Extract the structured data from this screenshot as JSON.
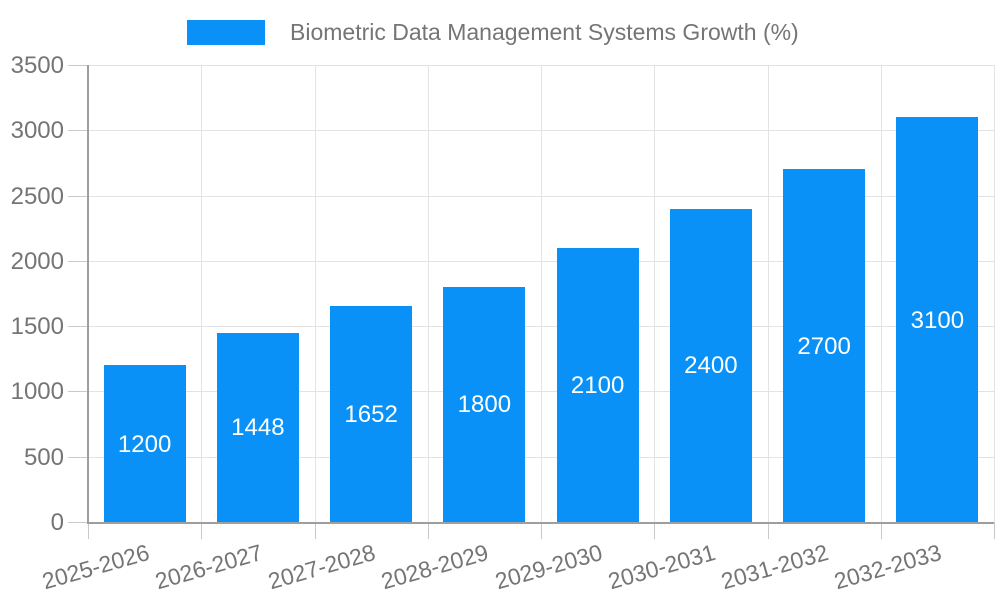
{
  "legend": {
    "label": "Biometric Data Management Systems Growth (%)"
  },
  "chart_data": {
    "type": "bar",
    "title": "Biometric Data Management Systems Growth (%)",
    "categories": [
      "2025-2026",
      "2026-2027",
      "2027-2028",
      "2028-2029",
      "2029-2030",
      "2030-2031",
      "2031-2032",
      "2032-2033"
    ],
    "values": [
      1200,
      1448,
      1652,
      1800,
      2100,
      2400,
      2700,
      3100
    ],
    "value_labels": [
      "1200",
      "1448",
      "1652",
      "1800",
      "2100",
      "2400",
      "2700",
      "3100"
    ],
    "xlabel": "",
    "ylabel": "",
    "ylim": [
      0,
      3500
    ],
    "yticks": [
      0,
      500,
      1000,
      1500,
      2000,
      2500,
      3000,
      3500
    ],
    "grid": true,
    "legend_position": "top",
    "colors": {
      "bar": "#0991f7",
      "value_label": "#ffffff",
      "axis_text": "#757575",
      "gridline": "#e3e3e3",
      "axis_line": "#9e9e9e",
      "tick_mark": "#c9c9c9",
      "background": "#ffffff"
    }
  }
}
